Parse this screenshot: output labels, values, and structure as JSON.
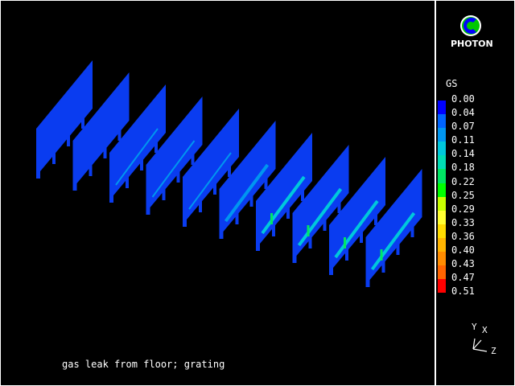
{
  "caption": "gas leak from floor; grating",
  "logo": {
    "text": "PHOTON",
    "icon": "photon-logo-icon"
  },
  "legend": {
    "variable": "GS",
    "labels": [
      "0.00",
      "0.04",
      "0.07",
      "0.11",
      "0.14",
      "0.18",
      "0.22",
      "0.25",
      "0.29",
      "0.33",
      "0.36",
      "0.40",
      "0.43",
      "0.47",
      "0.51"
    ],
    "colors": [
      "#0000ff",
      "#0064ff",
      "#0096f0",
      "#00c8dc",
      "#00dcb4",
      "#00e664",
      "#00ff00",
      "#c8ff00",
      "#ffff32",
      "#ffdc00",
      "#ffb400",
      "#ff8c00",
      "#ff6400",
      "#ff0000"
    ]
  },
  "axes": {
    "y": "Y",
    "x": "X",
    "z": "Z"
  },
  "panel_color": "#0a3cf0"
}
